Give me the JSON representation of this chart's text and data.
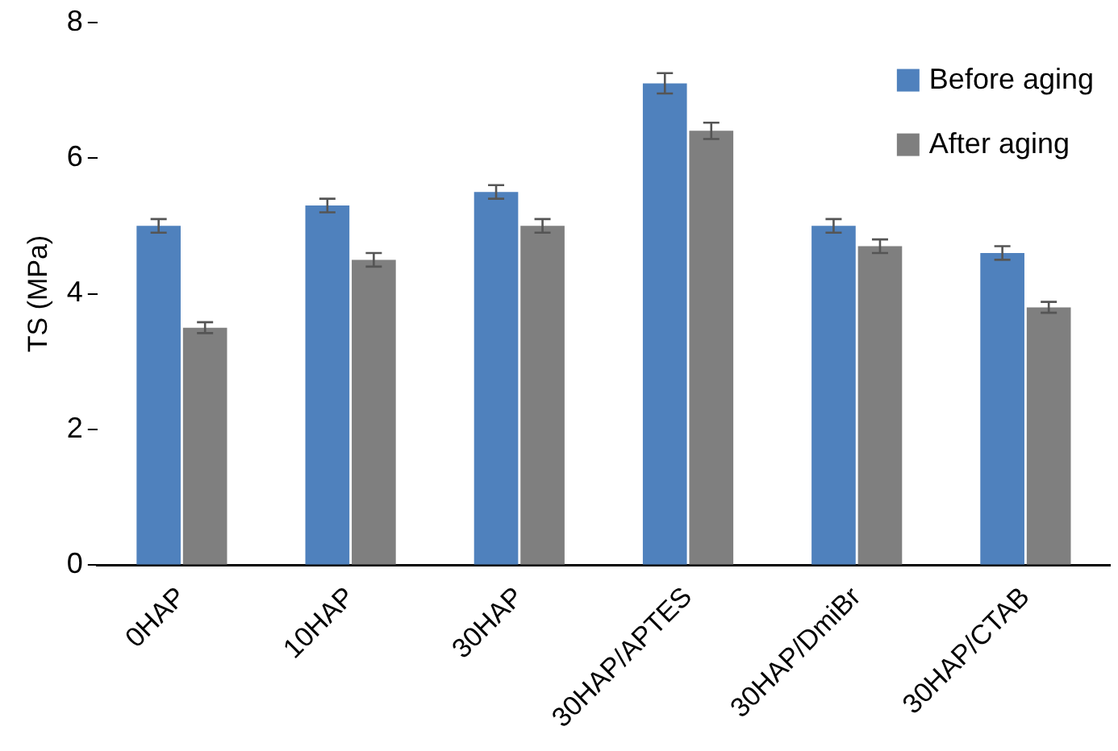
{
  "chart_data": {
    "type": "bar",
    "ylabel": "TS (MPa)",
    "categories": [
      "0HAP",
      "10HAP",
      "30HAP",
      "30HAP/APTES",
      "30HAP/DmiBr",
      "30HAP/CTAB"
    ],
    "series": [
      {
        "name": "Before aging",
        "color": "#4f81bd",
        "values": [
          5.0,
          5.3,
          5.5,
          7.1,
          5.0,
          4.6
        ],
        "errors": [
          0.1,
          0.1,
          0.1,
          0.15,
          0.1,
          0.1
        ]
      },
      {
        "name": "After aging",
        "color": "#7f7f7f",
        "values": [
          3.5,
          4.5,
          5.0,
          6.4,
          4.7,
          3.8
        ],
        "errors": [
          0.08,
          0.1,
          0.1,
          0.12,
          0.1,
          0.08
        ]
      }
    ],
    "ylim": [
      0,
      8
    ],
    "yticks": [
      0,
      2,
      4,
      6,
      8
    ],
    "grid": false,
    "legend": "top right"
  }
}
